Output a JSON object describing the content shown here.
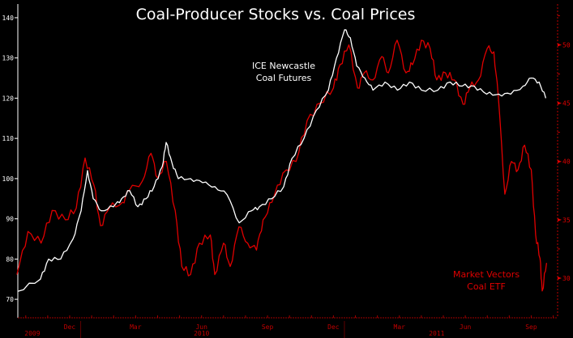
{
  "chart_data": {
    "type": "line",
    "title": "Coal-Producer Stocks vs. Coal Prices",
    "x_unit": "months since Sep 1, 2009",
    "xlim": [
      0.64,
      25.2
    ],
    "x_ticks": [
      {
        "m": 3,
        "label": "Dec"
      },
      {
        "m": 6,
        "label": "Mar"
      },
      {
        "m": 9,
        "label": "Jun"
      },
      {
        "m": 12,
        "label": "Sep"
      },
      {
        "m": 15,
        "label": "Dec"
      },
      {
        "m": 18,
        "label": "Mar"
      },
      {
        "m": 21,
        "label": "Jun"
      },
      {
        "m": 24,
        "label": "Sep"
      }
    ],
    "years": [
      {
        "label": "2009",
        "center": 1.3
      },
      {
        "label": "2010",
        "center": 9.0
      },
      {
        "label": "2011",
        "center": 19.7
      }
    ],
    "year_dividers": [
      3.5,
      15.5
    ],
    "left_axis": {
      "ylim": [
        65.4,
        143.4
      ],
      "ticks": [
        70,
        80,
        90,
        100,
        110,
        120,
        130,
        140
      ],
      "color": "#ffffff"
    },
    "right_axis": {
      "ylim": [
        26.6,
        53.5
      ],
      "ticks": [
        30,
        35,
        40,
        45,
        50
      ],
      "color": "#e00000"
    },
    "series": [
      {
        "name": "ICE Newcastle Coal Futures",
        "label_lines": [
          "ICE Newcastle",
          "Coal Futures"
        ],
        "axis": "left",
        "color": "#ffffff",
        "x": [
          0.64,
          1.67,
          2.04,
          2.59,
          3.15,
          3.52,
          3.81,
          4.07,
          4.44,
          4.99,
          5.36,
          5.73,
          6.1,
          6.47,
          6.84,
          7.21,
          7.39,
          7.65,
          7.94,
          8.5,
          9.05,
          9.61,
          10.16,
          10.71,
          11.27,
          11.63,
          12.19,
          12.74,
          13.11,
          13.66,
          14.22,
          14.77,
          15.14,
          15.51,
          15.77,
          16.06,
          16.43,
          16.8,
          17.35,
          17.91,
          18.46,
          19.01,
          19.75,
          20.31,
          20.86,
          21.41,
          21.97,
          22.52,
          23.07,
          23.63,
          24.0,
          24.36,
          24.66
        ],
        "y": [
          72,
          75,
          80,
          80,
          85,
          92,
          102,
          95,
          92,
          93,
          95,
          97,
          93,
          95,
          98,
          103,
          109,
          104,
          100,
          100,
          99,
          98,
          96,
          89,
          92,
          93,
          95,
          98,
          105,
          110,
          117,
          122,
          130,
          137,
          135,
          128,
          125,
          122,
          124,
          122,
          124,
          122,
          122,
          124,
          123,
          123,
          121,
          121,
          121,
          123,
          125,
          124,
          120
        ]
      },
      {
        "name": "Market Vectors Coal ETF",
        "label_lines": [
          "Market Vectors",
          "Coal ETF"
        ],
        "axis": "right",
        "color": "#e00000",
        "x": [
          0.6,
          1.1,
          1.7,
          2.2,
          2.8,
          3.3,
          3.7,
          4.1,
          4.4,
          4.8,
          5.4,
          5.7,
          6.3,
          6.7,
          7.0,
          7.4,
          7.8,
          8.1,
          8.5,
          8.9,
          9.4,
          9.6,
          10.0,
          10.3,
          10.7,
          11.1,
          11.5,
          11.8,
          12.2,
          12.7,
          13.3,
          13.8,
          14.4,
          15.0,
          15.3,
          15.7,
          16.1,
          16.4,
          16.8,
          17.2,
          17.5,
          17.9,
          18.3,
          18.6,
          19.0,
          19.4,
          19.7,
          20.1,
          20.5,
          20.9,
          21.2,
          21.6,
          22.0,
          22.3,
          22.5,
          22.8,
          23.1,
          23.4,
          23.7,
          24.0,
          24.2,
          24.4,
          24.5,
          24.7
        ],
        "y": [
          30.3,
          34,
          33,
          35.8,
          35,
          36,
          40.3,
          38,
          34.5,
          36,
          36.5,
          37.5,
          38.3,
          40.7,
          38.6,
          40,
          35.8,
          31,
          30.3,
          33,
          33.7,
          30.3,
          33,
          31,
          34.4,
          33,
          32.4,
          35,
          36.5,
          39,
          40,
          43.5,
          45,
          46.3,
          48.3,
          50,
          46.3,
          47.6,
          47,
          49,
          47.6,
          50.4,
          47.6,
          48.3,
          50.4,
          49.7,
          47,
          47.6,
          47,
          44.9,
          46.3,
          47,
          49.7,
          49.4,
          45.6,
          37.2,
          40,
          39.3,
          41.4,
          39.3,
          33.7,
          31.7,
          28.9,
          31.3
        ]
      }
    ]
  }
}
